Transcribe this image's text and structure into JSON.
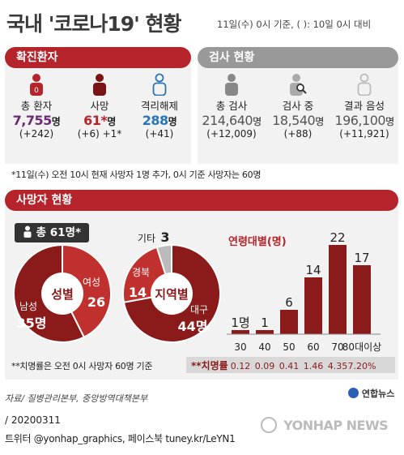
{
  "header": {
    "title": "국내 '코로나19' 현황",
    "subtitle": "11일(수) 0시 기준, ( ): 10일 0시 대비"
  },
  "confirmed": {
    "header": "확진환자",
    "items": [
      {
        "label": "총 환자",
        "value": "7,755",
        "unit": "명",
        "change": "(+242)",
        "color": "#6b2a74",
        "icon": "patient-icon"
      },
      {
        "label": "사망",
        "value": "61*",
        "unit": "명",
        "change": "(+6) +1*",
        "color": "#b5232b",
        "icon": "person-dark-icon"
      },
      {
        "label": "격리해제",
        "value": "288",
        "unit": "명",
        "change": "(+41)",
        "color": "#2a74b5",
        "icon": "person-outline-icon"
      }
    ]
  },
  "tests": {
    "header": "검사 현황",
    "items": [
      {
        "label": "총 검사",
        "value": "214,640",
        "unit": "명",
        "change": "(+12,009)",
        "icon": "person-gray-icon"
      },
      {
        "label": "검사 중",
        "value": "18,540",
        "unit": "명",
        "change": "(+88)",
        "icon": "magnifier-person-icon"
      },
      {
        "label": "결과 음성",
        "value": "196,100",
        "unit": "명",
        "change": "(+11,921)",
        "icon": "person-light-icon"
      }
    ]
  },
  "note1": "*11일(수) 오전 10시 현재 사망자 1명 추가, 0시 기준 사망자는 60명",
  "deaths": {
    "header": "사망자 현황",
    "total": "총 61명*",
    "note2": "**치명률은 오전 0시 사망자 60명 기준"
  },
  "chart_data": [
    {
      "type": "pie",
      "center_label": "성별",
      "slices": [
        {
          "name": "남성",
          "value": 35,
          "label": "35명",
          "color": "#8b1a1a"
        },
        {
          "name": "여성",
          "value": 26,
          "label": "26",
          "color": "#c0302f"
        }
      ]
    },
    {
      "type": "pie",
      "center_label": "지역별",
      "slices": [
        {
          "name": "대구",
          "value": 44,
          "label": "44명",
          "color": "#8b1a1a"
        },
        {
          "name": "경북",
          "value": 14,
          "label": "14",
          "color": "#c0302f"
        },
        {
          "name": "기타",
          "value": 3,
          "label": "3",
          "color": "#bbbbbb"
        }
      ]
    },
    {
      "type": "bar",
      "title": "연령대별(명)",
      "categories": [
        "30",
        "40",
        "50",
        "60",
        "70",
        "80대이상"
      ],
      "values": [
        1,
        1,
        6,
        14,
        22,
        17
      ],
      "value_labels": [
        "1명",
        "1",
        "6",
        "14",
        "22",
        "17"
      ],
      "ylim": [
        0,
        22
      ],
      "color": "#8b1a1a",
      "row_label": "**치명률",
      "fatality_rates": [
        "0.12",
        "0.09",
        "0.41",
        "1.46",
        "4.35",
        "7.20%"
      ]
    }
  ],
  "footer": {
    "source": "자료/ 질병관리본부, 중앙방역대책본부",
    "logo": "연합뉴스",
    "date": "/ 20200311",
    "credit": "트위터 @yonhap_graphics, 페이스북 tuney.kr/LeYN1",
    "watermark": "YONHAP NEWS"
  }
}
